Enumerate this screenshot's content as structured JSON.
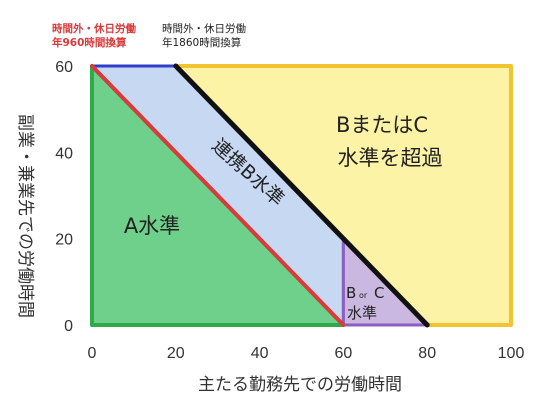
{
  "chart_data": {
    "type": "area",
    "xlabel": "主たる勤務先での労働時間",
    "ylabel": "副業・兼業先での労働時間",
    "xlim": [
      0,
      100
    ],
    "ylim": [
      0,
      60
    ],
    "x_ticks": [
      "0",
      "20",
      "40",
      "60",
      "80",
      "100"
    ],
    "y_ticks": [
      "0",
      "20",
      "40",
      "60"
    ],
    "grid": false,
    "lines": [
      {
        "label_line1": "時間外・休日労働",
        "label_line2": "年960時間換算",
        "color": "#d93b3b",
        "points": [
          [
            0,
            60
          ],
          [
            60,
            0
          ]
        ]
      },
      {
        "label_line1": "時間外・休日労働",
        "label_line2": "年1860時間換算",
        "color": "#111111",
        "points": [
          [
            20,
            60
          ],
          [
            80,
            0
          ]
        ]
      }
    ],
    "regions": [
      {
        "name": "A水準",
        "fill": "#6fd08c",
        "stroke": "#2eaa4a",
        "points": [
          [
            0,
            0
          ],
          [
            0,
            60
          ],
          [
            60,
            0
          ]
        ]
      },
      {
        "name": "連携B水準",
        "fill": "#c6d8f2",
        "stroke": "#2f3fc8",
        "points": [
          [
            0,
            60
          ],
          [
            60,
            0
          ],
          [
            60,
            20
          ],
          [
            20,
            60
          ]
        ]
      },
      {
        "name_line1": "B",
        "name_or": "or",
        "name_line1b": "C",
        "name_line2": "水準",
        "fill": "#cbb8e0",
        "stroke": "#8a5fc0",
        "points": [
          [
            60,
            0
          ],
          [
            60,
            20
          ],
          [
            80,
            0
          ]
        ]
      },
      {
        "name_line1": "BまたはC",
        "name_line2": "水準を超過",
        "fill": "#fcf3a6",
        "stroke": "#f2c530",
        "points": [
          [
            20,
            60
          ],
          [
            100,
            60
          ],
          [
            100,
            0
          ],
          [
            80,
            0
          ]
        ]
      }
    ]
  }
}
